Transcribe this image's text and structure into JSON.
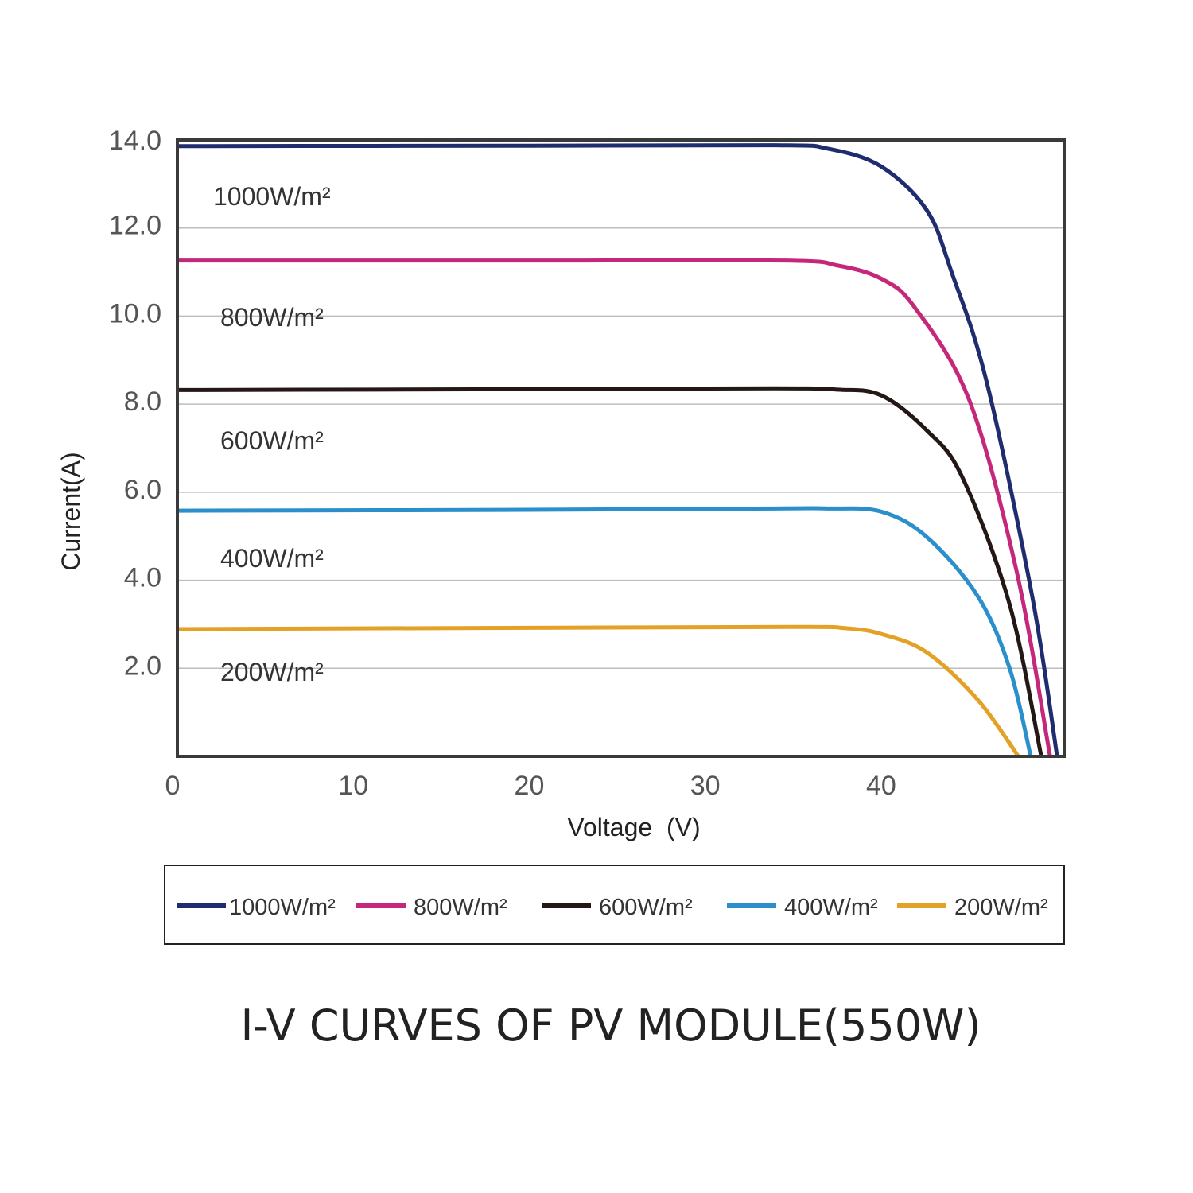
{
  "chart_data": {
    "type": "line",
    "title": "I-V CURVES OF PV MODULE(550W)",
    "xlabel": "Voltage  (V)",
    "ylabel": "Current(A)",
    "xlim": [
      0,
      50.4
    ],
    "ylim": [
      0,
      14
    ],
    "xticks": [
      "0",
      "10",
      "20",
      "30",
      "40"
    ],
    "xtick_values": [
      0,
      10,
      20,
      30,
      40
    ],
    "yticks": [
      "14.0",
      "12.0",
      "10.0",
      "8.0",
      "6.0",
      "4.0",
      "2.0"
    ],
    "ytick_values": [
      14,
      12,
      10,
      8,
      6,
      4,
      2
    ],
    "grid": "horizontal",
    "legend_placement": "bottom",
    "series": [
      {
        "name": "1000W/m²",
        "color": "#1f2d6e",
        "annotation": "1000W/m²",
        "x": [
          0,
          20,
          34,
          37,
          40,
          42.6,
          44,
          46,
          48.6,
          50.0
        ],
        "y": [
          13.86,
          13.87,
          13.88,
          13.8,
          13.4,
          12.4,
          11.0,
          8.5,
          3.6,
          0
        ]
      },
      {
        "name": "800W/m²",
        "color": "#c5287a",
        "annotation": "800W/m²",
        "x": [
          0,
          20,
          34.5,
          37.5,
          40,
          41.9,
          45,
          47.7,
          49.6
        ],
        "y": [
          11.26,
          11.26,
          11.26,
          11.15,
          10.85,
          10.2,
          8.1,
          4.2,
          0
        ]
      },
      {
        "name": "600W/m²",
        "color": "#231815",
        "annotation": "600W/m²",
        "x": [
          0,
          20,
          34,
          37.5,
          40,
          42.6,
          44.6,
          47.3,
          49.1
        ],
        "y": [
          8.32,
          8.34,
          8.36,
          8.33,
          8.2,
          7.4,
          6.35,
          3.45,
          0
        ]
      },
      {
        "name": "400W/m²",
        "color": "#2b8fcb",
        "annotation": "400W/m²",
        "x": [
          0,
          20,
          34,
          37,
          40,
          42.6,
          45.5,
          47.3,
          48.5
        ],
        "y": [
          5.58,
          5.6,
          5.63,
          5.63,
          5.56,
          4.98,
          3.63,
          2.0,
          0
        ]
      },
      {
        "name": "200W/m²",
        "color": "#e3a126",
        "annotation": "200W/m²",
        "x": [
          0,
          20,
          35,
          38,
          40,
          42.6,
          45.5,
          47.8
        ],
        "y": [
          2.89,
          2.92,
          2.94,
          2.91,
          2.78,
          2.36,
          1.28,
          0
        ]
      }
    ]
  }
}
